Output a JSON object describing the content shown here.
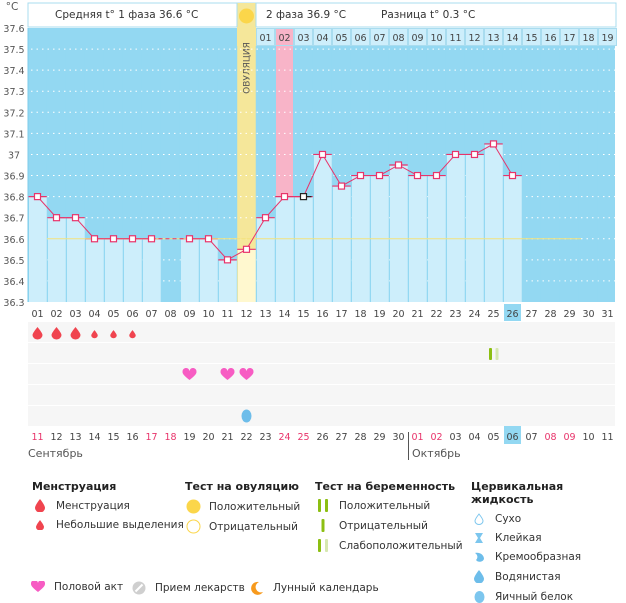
{
  "header": {
    "phase1_label": "Средняя t° 1 фаза 36.6 °C",
    "phase2_label": "2 фаза 36.9 °C",
    "difference_label": "Разница t° 0.3 °C",
    "ovulation_label": "ОВУЛЯЦИЯ"
  },
  "chart_data": {
    "type": "line",
    "title": "",
    "ylabel": "°C",
    "ylim": [
      36.3,
      37.6
    ],
    "yticks": [
      "37.6",
      "37.5",
      "37.4",
      "37.3",
      "37.2",
      "37.1",
      "37",
      "36.9",
      "36.8",
      "36.7",
      "36.6",
      "36.5",
      "36.4",
      "36.3"
    ],
    "cycle_days": [
      "01",
      "02",
      "03",
      "04",
      "05",
      "06",
      "07",
      "08",
      "09",
      "10",
      "11",
      "12",
      "13",
      "14",
      "15",
      "16",
      "17",
      "18",
      "19",
      "20",
      "21",
      "22",
      "23",
      "24",
      "25",
      "26",
      "27",
      "28",
      "29",
      "30",
      "31"
    ],
    "top_phase2_days": [
      "01",
      "02",
      "03",
      "04",
      "05",
      "06",
      "07",
      "08",
      "09",
      "10",
      "11",
      "12",
      "13",
      "14",
      "15",
      "16",
      "17",
      "18",
      "19"
    ],
    "calendar_dates": [
      "11",
      "12",
      "13",
      "14",
      "15",
      "16",
      "17",
      "18",
      "19",
      "20",
      "21",
      "22",
      "23",
      "24",
      "25",
      "26",
      "27",
      "28",
      "29",
      "30",
      "01",
      "02",
      "03",
      "04",
      "05",
      "06",
      "07",
      "08",
      "09",
      "10",
      "11"
    ],
    "weekend_dates_index": [
      0,
      6,
      7,
      13,
      14,
      20,
      21,
      27,
      28
    ],
    "months": [
      {
        "name": "Сентябрь",
        "start_index": 0
      },
      {
        "name": "Октябрь",
        "start_index": 20
      }
    ],
    "series": [
      {
        "name": "Базальная температура",
        "values": [
          36.8,
          36.7,
          36.7,
          36.6,
          36.6,
          36.6,
          36.6,
          null,
          36.6,
          36.6,
          36.5,
          36.55,
          36.7,
          36.8,
          36.8,
          37.0,
          36.85,
          36.9,
          36.9,
          36.95,
          36.9,
          36.9,
          37.0,
          37.0,
          37.05,
          36.9,
          null,
          null,
          null,
          null,
          null
        ]
      }
    ],
    "coverline": 36.6,
    "ovulation_day": 12,
    "highlighted_day": 14,
    "today_day": 26,
    "excluded_point_day": 15,
    "menstruation": {
      "heavy": [
        1,
        2,
        3
      ],
      "light": [
        4,
        5,
        6
      ]
    },
    "intercourse_days": [
      9,
      11,
      12
    ],
    "pregnancy_test_faint_positive_days": [
      25
    ],
    "cervical_fluid": [
      {
        "day": 12,
        "type": "egg-white"
      }
    ]
  },
  "legend": {
    "menstruation": {
      "title": "Менструация",
      "items": [
        "Менструация",
        "Небольшие выделения"
      ]
    },
    "ovulation_test": {
      "title": "Тест на овуляцию",
      "items": [
        "Положительный",
        "Отрицательный"
      ]
    },
    "pregnancy_test": {
      "title": "Тест на беременность",
      "items": [
        "Положительный",
        "Отрицательный",
        "Слабоположительный"
      ]
    },
    "cervical_fluid": {
      "title": "Цервикальная жидкость",
      "items": [
        "Сухо",
        "Клейкая",
        "Кремообразная",
        "Водянистая",
        "Яичный белок"
      ]
    },
    "other": [
      "Половой акт",
      "Прием лекарств",
      "Лунный календарь"
    ]
  },
  "colors": {
    "chart_bg": "#93d8f2",
    "bar": "#cdeefb",
    "line": "#e8336a",
    "ovulation": "#f5e79a",
    "highlight": "#f8b4c8",
    "weekend": "#e8336a",
    "coverline": "#f3e27c"
  }
}
